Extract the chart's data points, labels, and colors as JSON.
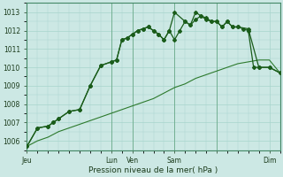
{
  "title": "Pression niveau de la mer( hPa )",
  "bg_color": "#cce8e4",
  "grid_color": "#a8d4cc",
  "line_color_dark": "#1a5c1a",
  "line_color_med": "#2d7a2d",
  "ylim": [
    1005.5,
    1013.5
  ],
  "yticks": [
    1006,
    1007,
    1008,
    1009,
    1010,
    1011,
    1012,
    1013
  ],
  "xlim": [
    0,
    96
  ],
  "xtick_positions": [
    0,
    32,
    40,
    56,
    72,
    92
  ],
  "xtick_labels": [
    "Jeu",
    "Lun",
    "Ven",
    "Sam",
    "",
    "Dim"
  ],
  "vline_positions": [
    0,
    32,
    40,
    56,
    72
  ],
  "line1_x": [
    0,
    4,
    8,
    12,
    16,
    20,
    24,
    28,
    32,
    36,
    40,
    44,
    48,
    52,
    56,
    60,
    64,
    68,
    72,
    76,
    80,
    84,
    88,
    92,
    96
  ],
  "line1_y": [
    1005.7,
    1006.0,
    1006.2,
    1006.5,
    1006.7,
    1006.9,
    1007.1,
    1007.3,
    1007.5,
    1007.7,
    1007.9,
    1008.1,
    1008.3,
    1008.6,
    1008.9,
    1009.1,
    1009.4,
    1009.6,
    1009.8,
    1010.0,
    1010.2,
    1010.3,
    1010.4,
    1010.4,
    1009.7
  ],
  "line2_x": [
    0,
    4,
    8,
    10,
    12,
    16,
    20,
    24,
    28,
    32,
    34,
    36,
    38,
    40,
    42,
    44,
    46,
    48,
    50,
    52,
    54,
    56,
    58,
    60,
    62,
    64,
    66,
    68,
    70,
    72,
    74,
    76,
    78,
    80,
    82,
    84,
    86,
    88,
    92,
    96
  ],
  "line2_y": [
    1005.7,
    1006.7,
    1006.8,
    1007.0,
    1007.2,
    1007.6,
    1007.7,
    1009.0,
    1010.1,
    1010.3,
    1010.4,
    1011.5,
    1011.6,
    1011.8,
    1012.0,
    1012.1,
    1012.2,
    1012.0,
    1011.8,
    1011.5,
    1012.0,
    1011.5,
    1012.0,
    1012.5,
    1012.3,
    1013.0,
    1012.8,
    1012.6,
    1012.5,
    1012.5,
    1012.2,
    1012.5,
    1012.2,
    1012.2,
    1012.1,
    1012.0,
    1010.0,
    1010.0,
    1010.0,
    1009.7
  ],
  "line3_x": [
    0,
    4,
    8,
    10,
    12,
    16,
    20,
    24,
    28,
    32,
    34,
    36,
    38,
    40,
    42,
    44,
    46,
    48,
    50,
    52,
    54,
    56,
    60,
    62,
    64,
    66,
    68,
    70,
    72,
    74,
    76,
    78,
    80,
    84,
    88,
    92,
    96
  ],
  "line3_y": [
    1005.7,
    1006.7,
    1006.8,
    1007.0,
    1007.2,
    1007.6,
    1007.7,
    1009.0,
    1010.1,
    1010.3,
    1010.4,
    1011.5,
    1011.6,
    1011.8,
    1012.0,
    1012.1,
    1012.2,
    1012.0,
    1011.8,
    1011.5,
    1012.0,
    1013.0,
    1012.5,
    1012.3,
    1012.6,
    1012.8,
    1012.7,
    1012.5,
    1012.5,
    1012.2,
    1012.5,
    1012.2,
    1012.2,
    1012.1,
    1010.0,
    1010.0,
    1009.7
  ]
}
